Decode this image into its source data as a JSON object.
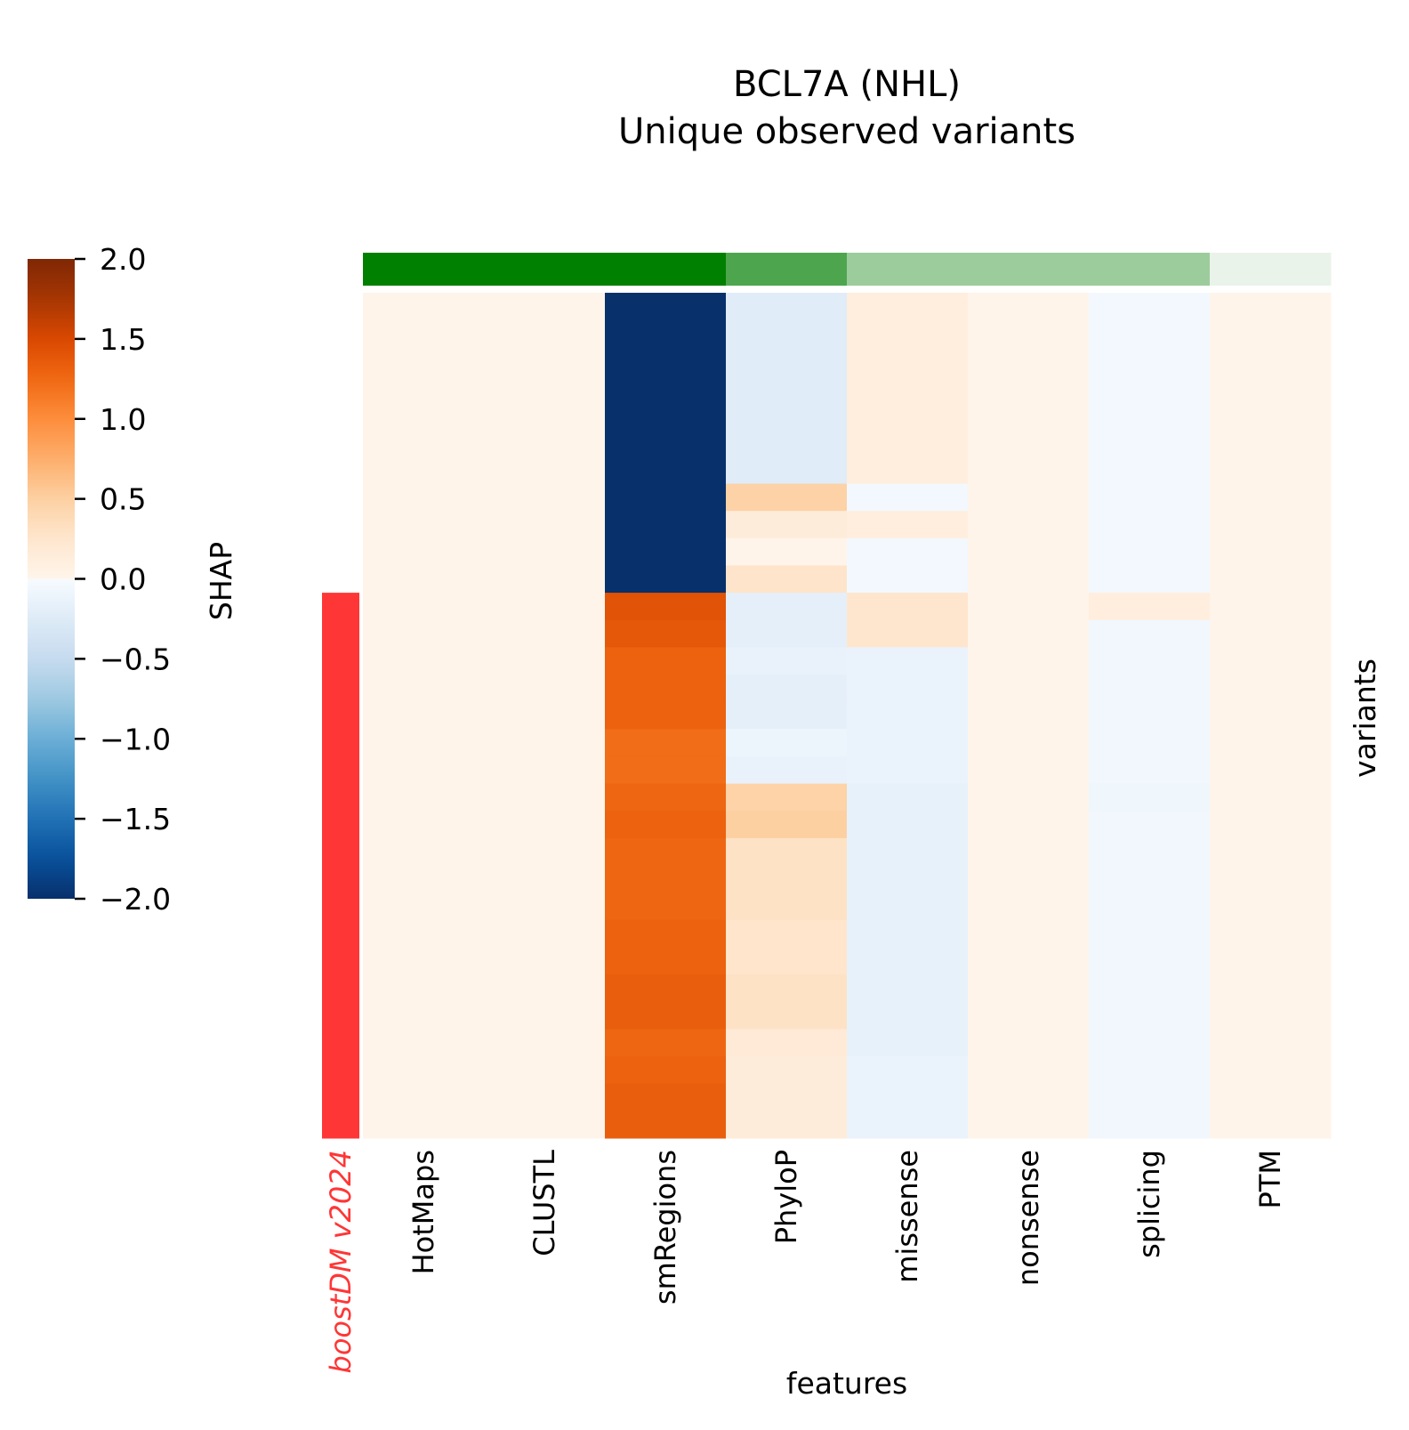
{
  "chart_data": {
    "type": "heatmap",
    "title": [
      "BCL7A (NHL)",
      "Unique observed variants"
    ],
    "xlabel": "features",
    "ylabel": "variants",
    "columns": [
      "HotMaps",
      "CLUSTL",
      "smRegions",
      "PhyloP",
      "missense",
      "nonsense",
      "splicing",
      "PTM"
    ],
    "n_rows": 31,
    "values_by_column": {
      "HotMaps": [
        0.01,
        0.01,
        0.01,
        0.01,
        0.01,
        0.01,
        0.01,
        0.01,
        0.01,
        0.01,
        0.01,
        0.01,
        0.01,
        0.01,
        0.01,
        0.01,
        0.01,
        0.01,
        0.01,
        0.01,
        0.01,
        0.01,
        0.01,
        0.01,
        0.01,
        0.01,
        0.01,
        0.01,
        0.01,
        0.01,
        0.01
      ],
      "CLUSTL": [
        0.01,
        0.01,
        0.01,
        0.01,
        0.01,
        0.01,
        0.01,
        0.01,
        0.01,
        0.01,
        0.01,
        0.01,
        0.01,
        0.01,
        0.01,
        0.01,
        0.01,
        0.01,
        0.01,
        0.01,
        0.01,
        0.01,
        0.01,
        0.01,
        0.01,
        0.01,
        0.01,
        0.01,
        0.01,
        0.01,
        0.01
      ],
      "smRegions": [
        -2,
        -2,
        -2,
        -2,
        -2,
        -2,
        -2,
        -2,
        -2,
        -2,
        -2,
        1.42,
        1.38,
        1.3,
        1.3,
        1.3,
        1.22,
        1.22,
        1.27,
        1.3,
        1.27,
        1.27,
        1.27,
        1.3,
        1.3,
        1.33,
        1.33,
        1.27,
        1.3,
        1.33,
        1.33
      ],
      "PhyloP": [
        -0.23,
        -0.23,
        -0.23,
        -0.23,
        -0.23,
        -0.23,
        -0.23,
        0.48,
        0.15,
        0.02,
        0.27,
        -0.18,
        -0.18,
        -0.14,
        -0.18,
        -0.18,
        -0.1,
        -0.14,
        0.47,
        0.5,
        0.3,
        0.3,
        0.3,
        0.26,
        0.26,
        0.3,
        0.3,
        0.18,
        0.15,
        0.15,
        0.15
      ],
      "missense": [
        0.12,
        0.12,
        0.12,
        0.12,
        0.12,
        0.12,
        0.12,
        -0.05,
        0.12,
        -0.05,
        -0.05,
        0.25,
        0.25,
        -0.13,
        -0.13,
        -0.13,
        -0.13,
        -0.13,
        -0.16,
        -0.16,
        -0.16,
        -0.16,
        -0.16,
        -0.16,
        -0.16,
        -0.16,
        -0.16,
        -0.16,
        -0.13,
        -0.13,
        -0.13
      ],
      "nonsense": [
        0.01,
        0.01,
        0.01,
        0.01,
        0.01,
        0.01,
        0.01,
        0.01,
        0.01,
        0.01,
        0.01,
        0.01,
        0.01,
        0.01,
        0.01,
        0.01,
        0.01,
        0.01,
        0.01,
        0.01,
        0.01,
        0.01,
        0.01,
        0.01,
        0.01,
        0.01,
        0.01,
        0.01,
        0.01,
        0.01,
        0.01
      ],
      "splicing": [
        -0.04,
        -0.04,
        -0.04,
        -0.04,
        -0.04,
        -0.04,
        -0.04,
        -0.04,
        -0.04,
        -0.04,
        -0.04,
        0.12,
        -0.06,
        -0.06,
        -0.06,
        -0.06,
        -0.06,
        -0.06,
        -0.08,
        -0.06,
        -0.06,
        -0.06,
        -0.06,
        -0.06,
        -0.06,
        -0.06,
        -0.06,
        -0.06,
        -0.06,
        -0.06,
        -0.06
      ],
      "PTM": [
        0.01,
        0.01,
        0.01,
        0.01,
        0.01,
        0.01,
        0.01,
        0.01,
        0.01,
        0.01,
        0.01,
        0.01,
        0.01,
        0.01,
        0.01,
        0.01,
        0.01,
        0.01,
        0.01,
        0.01,
        0.01,
        0.01,
        0.01,
        0.01,
        0.01,
        0.01,
        0.01,
        0.01,
        0.01,
        0.01,
        0.01
      ]
    },
    "row_annotation": {
      "label": "boostDM v2024",
      "color": "#ff3636",
      "driver": [
        0,
        0,
        0,
        0,
        0,
        0,
        0,
        0,
        0,
        0,
        0,
        1,
        1,
        1,
        1,
        1,
        1,
        1,
        1,
        1,
        1,
        1,
        1,
        1,
        1,
        1,
        1,
        1,
        1,
        1,
        1
      ]
    },
    "column_annotation_colors": [
      "#008000",
      "#008000",
      "#008000",
      "#4da64d",
      "#9ccc9c",
      "#9ccc9c",
      "#9ccc9c",
      "#eaf3ea"
    ],
    "colorbar": {
      "label": "SHAP",
      "vlim": [
        -2,
        2
      ],
      "ticks": [
        "2.0",
        "1.5",
        "1.0",
        "0.5",
        "0.0",
        "−0.5",
        "−1.0",
        "−1.5",
        "−2.0"
      ],
      "tick_values": [
        2,
        1.5,
        1,
        0.5,
        0,
        -0.5,
        -1,
        -1.5,
        -2
      ],
      "negative_colors": [
        "#f7fbff",
        "#deebf7",
        "#c6dbef",
        "#9ecae1",
        "#6baed6",
        "#4292c6",
        "#2171b5",
        "#08519c",
        "#08306b"
      ],
      "positive_colors": [
        "#fff5eb",
        "#fee6ce",
        "#fdd0a2",
        "#fdae6b",
        "#fd8d3c",
        "#f16913",
        "#d94801",
        "#a63603",
        "#7f2704"
      ]
    }
  }
}
